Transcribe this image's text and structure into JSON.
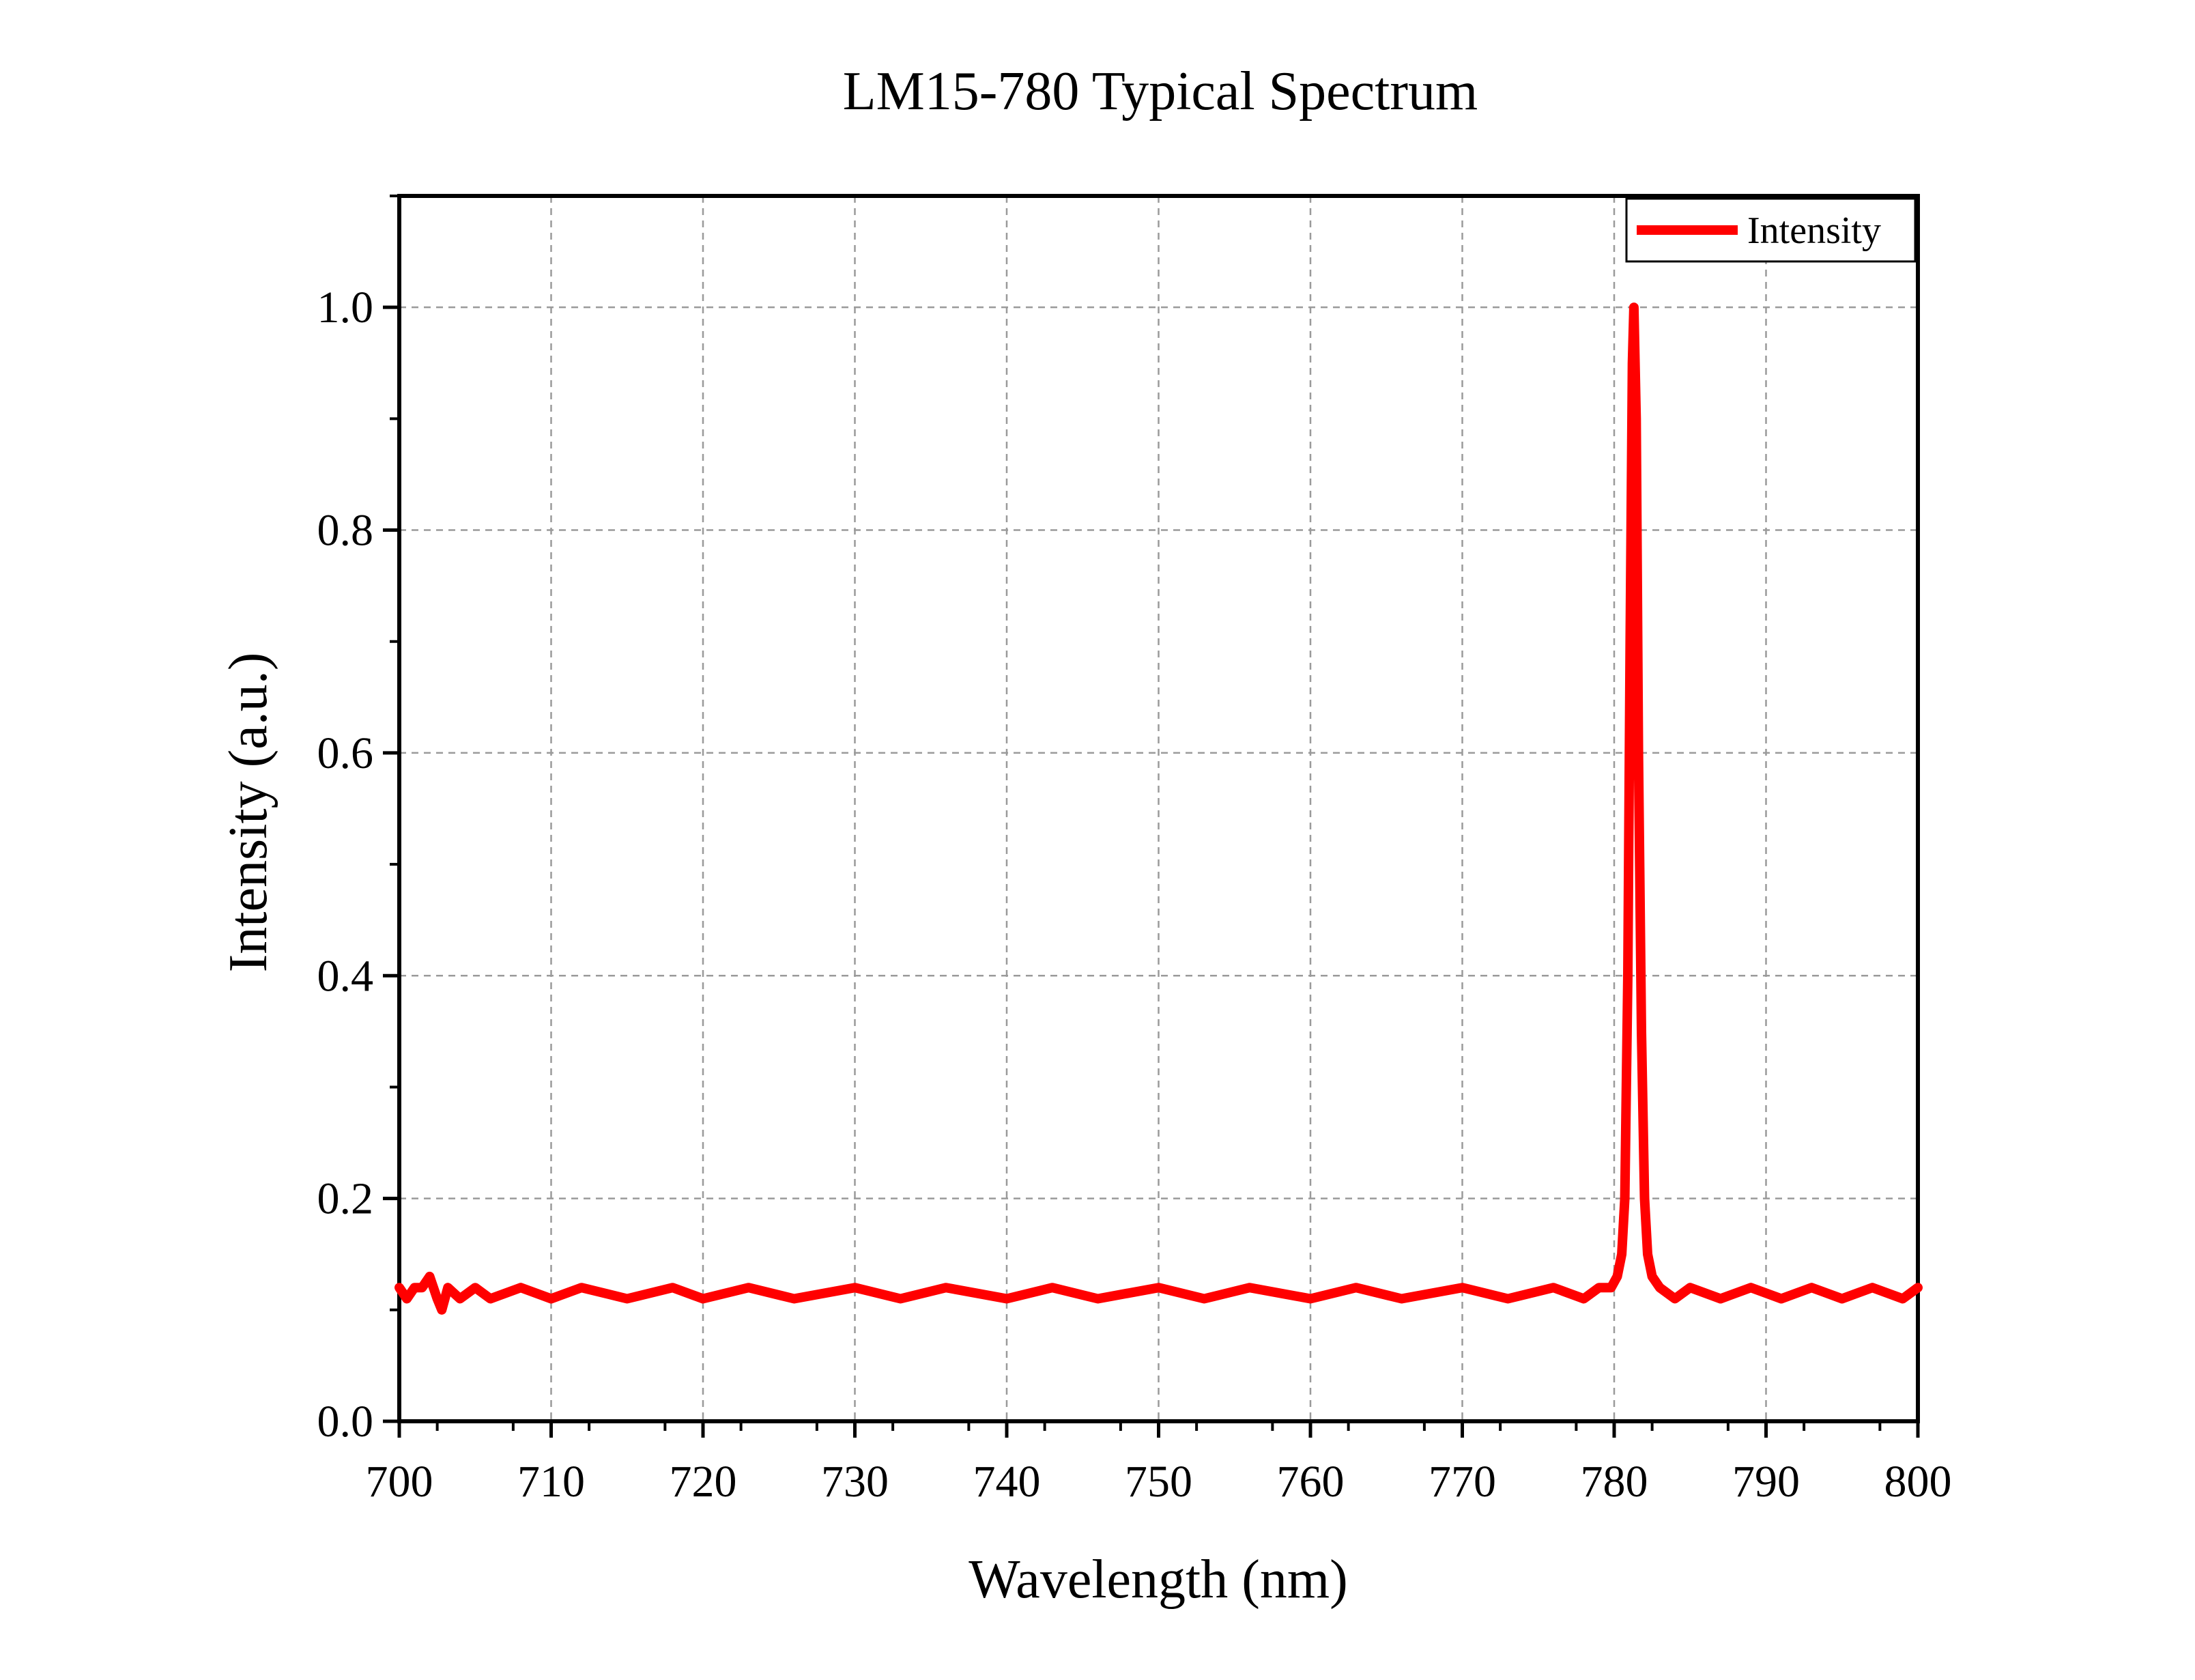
{
  "chart_data": {
    "type": "line",
    "title": "LM15-780 Typical Spectrum",
    "xlabel": "Wavelength (nm)",
    "ylabel": "Intensity (a.u.)",
    "xlim": [
      700,
      800
    ],
    "ylim": [
      0.0,
      1.1
    ],
    "x_ticks": [
      700,
      710,
      720,
      730,
      740,
      750,
      760,
      770,
      780,
      790,
      800
    ],
    "x_tick_labels": [
      "700",
      "710",
      "720",
      "730",
      "740",
      "750",
      "760",
      "770",
      "780",
      "790",
      "800"
    ],
    "y_ticks": [
      0.0,
      0.2,
      0.4,
      0.6,
      0.8,
      1.0
    ],
    "y_tick_labels": [
      "0.0",
      "0.2",
      "0.4",
      "0.6",
      "0.8",
      "1.0"
    ],
    "grid": true,
    "legend_position": "top-right",
    "series": [
      {
        "name": "Intensity",
        "color": "#ff0000",
        "points": [
          [
            700.0,
            0.12
          ],
          [
            700.5,
            0.11
          ],
          [
            701.0,
            0.12
          ],
          [
            701.5,
            0.12
          ],
          [
            702.0,
            0.13
          ],
          [
            702.5,
            0.11
          ],
          [
            702.8,
            0.1
          ],
          [
            703.2,
            0.12
          ],
          [
            704.0,
            0.11
          ],
          [
            705.0,
            0.12
          ],
          [
            706.0,
            0.11
          ],
          [
            708.0,
            0.12
          ],
          [
            710.0,
            0.11
          ],
          [
            712.0,
            0.12
          ],
          [
            715.0,
            0.11
          ],
          [
            718.0,
            0.12
          ],
          [
            720.0,
            0.11
          ],
          [
            723.0,
            0.12
          ],
          [
            726.0,
            0.11
          ],
          [
            730.0,
            0.12
          ],
          [
            733.0,
            0.11
          ],
          [
            736.0,
            0.12
          ],
          [
            740.0,
            0.11
          ],
          [
            743.0,
            0.12
          ],
          [
            746.0,
            0.11
          ],
          [
            750.0,
            0.12
          ],
          [
            753.0,
            0.11
          ],
          [
            756.0,
            0.12
          ],
          [
            760.0,
            0.11
          ],
          [
            763.0,
            0.12
          ],
          [
            766.0,
            0.11
          ],
          [
            770.0,
            0.12
          ],
          [
            773.0,
            0.11
          ],
          [
            776.0,
            0.12
          ],
          [
            778.0,
            0.11
          ],
          [
            779.0,
            0.12
          ],
          [
            779.8,
            0.12
          ],
          [
            780.2,
            0.13
          ],
          [
            780.5,
            0.15
          ],
          [
            780.7,
            0.2
          ],
          [
            780.9,
            0.4
          ],
          [
            781.05,
            0.7
          ],
          [
            781.2,
            0.95
          ],
          [
            781.3,
            1.0
          ],
          [
            781.45,
            0.9
          ],
          [
            781.6,
            0.6
          ],
          [
            781.8,
            0.35
          ],
          [
            782.0,
            0.2
          ],
          [
            782.2,
            0.15
          ],
          [
            782.5,
            0.13
          ],
          [
            783.0,
            0.12
          ],
          [
            784.0,
            0.11
          ],
          [
            785.0,
            0.12
          ],
          [
            787.0,
            0.11
          ],
          [
            789.0,
            0.12
          ],
          [
            791.0,
            0.11
          ],
          [
            793.0,
            0.12
          ],
          [
            795.0,
            0.11
          ],
          [
            797.0,
            0.12
          ],
          [
            799.0,
            0.11
          ],
          [
            800.0,
            0.12
          ]
        ]
      }
    ]
  }
}
